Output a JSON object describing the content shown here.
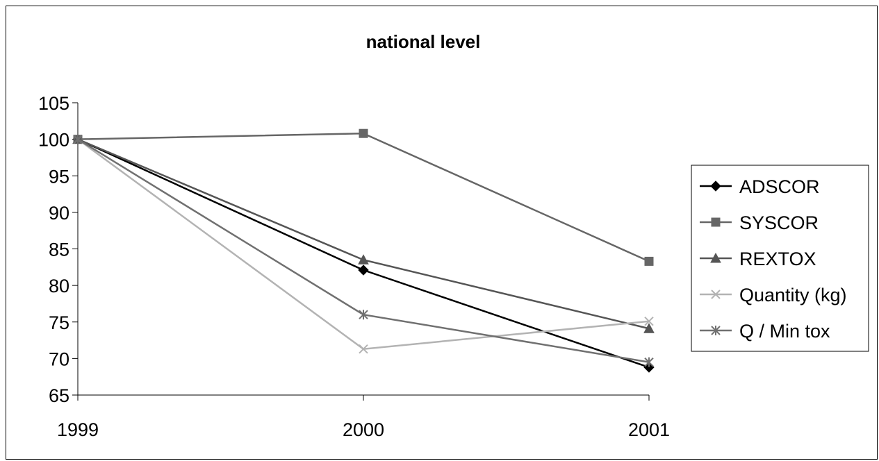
{
  "chart_data": {
    "type": "line",
    "title": "national  level",
    "xlabel": "",
    "ylabel": "",
    "x": [
      "1999",
      "2000",
      "2001"
    ],
    "ylim": [
      65,
      105
    ],
    "yticks": [
      65,
      70,
      75,
      80,
      85,
      90,
      95,
      100,
      105
    ],
    "grid": false,
    "legend_position": "right",
    "series": [
      {
        "name": "ADSCOR",
        "values": [
          100,
          82.1,
          68.8
        ],
        "color": "#000000",
        "marker": "diamond"
      },
      {
        "name": "SYSCOR",
        "values": [
          100,
          100.8,
          83.3
        ],
        "color": "#666666",
        "marker": "square"
      },
      {
        "name": "REXTOX",
        "values": [
          100,
          83.5,
          74.1
        ],
        "color": "#555555",
        "marker": "triangle"
      },
      {
        "name": "Quantity (kg)",
        "values": [
          100,
          71.3,
          75.1
        ],
        "color": "#b3b3b3",
        "marker": "x"
      },
      {
        "name": "Q / Min tox",
        "values": [
          100,
          76,
          69.5
        ],
        "color": "#707070",
        "marker": "asterisk"
      }
    ]
  }
}
